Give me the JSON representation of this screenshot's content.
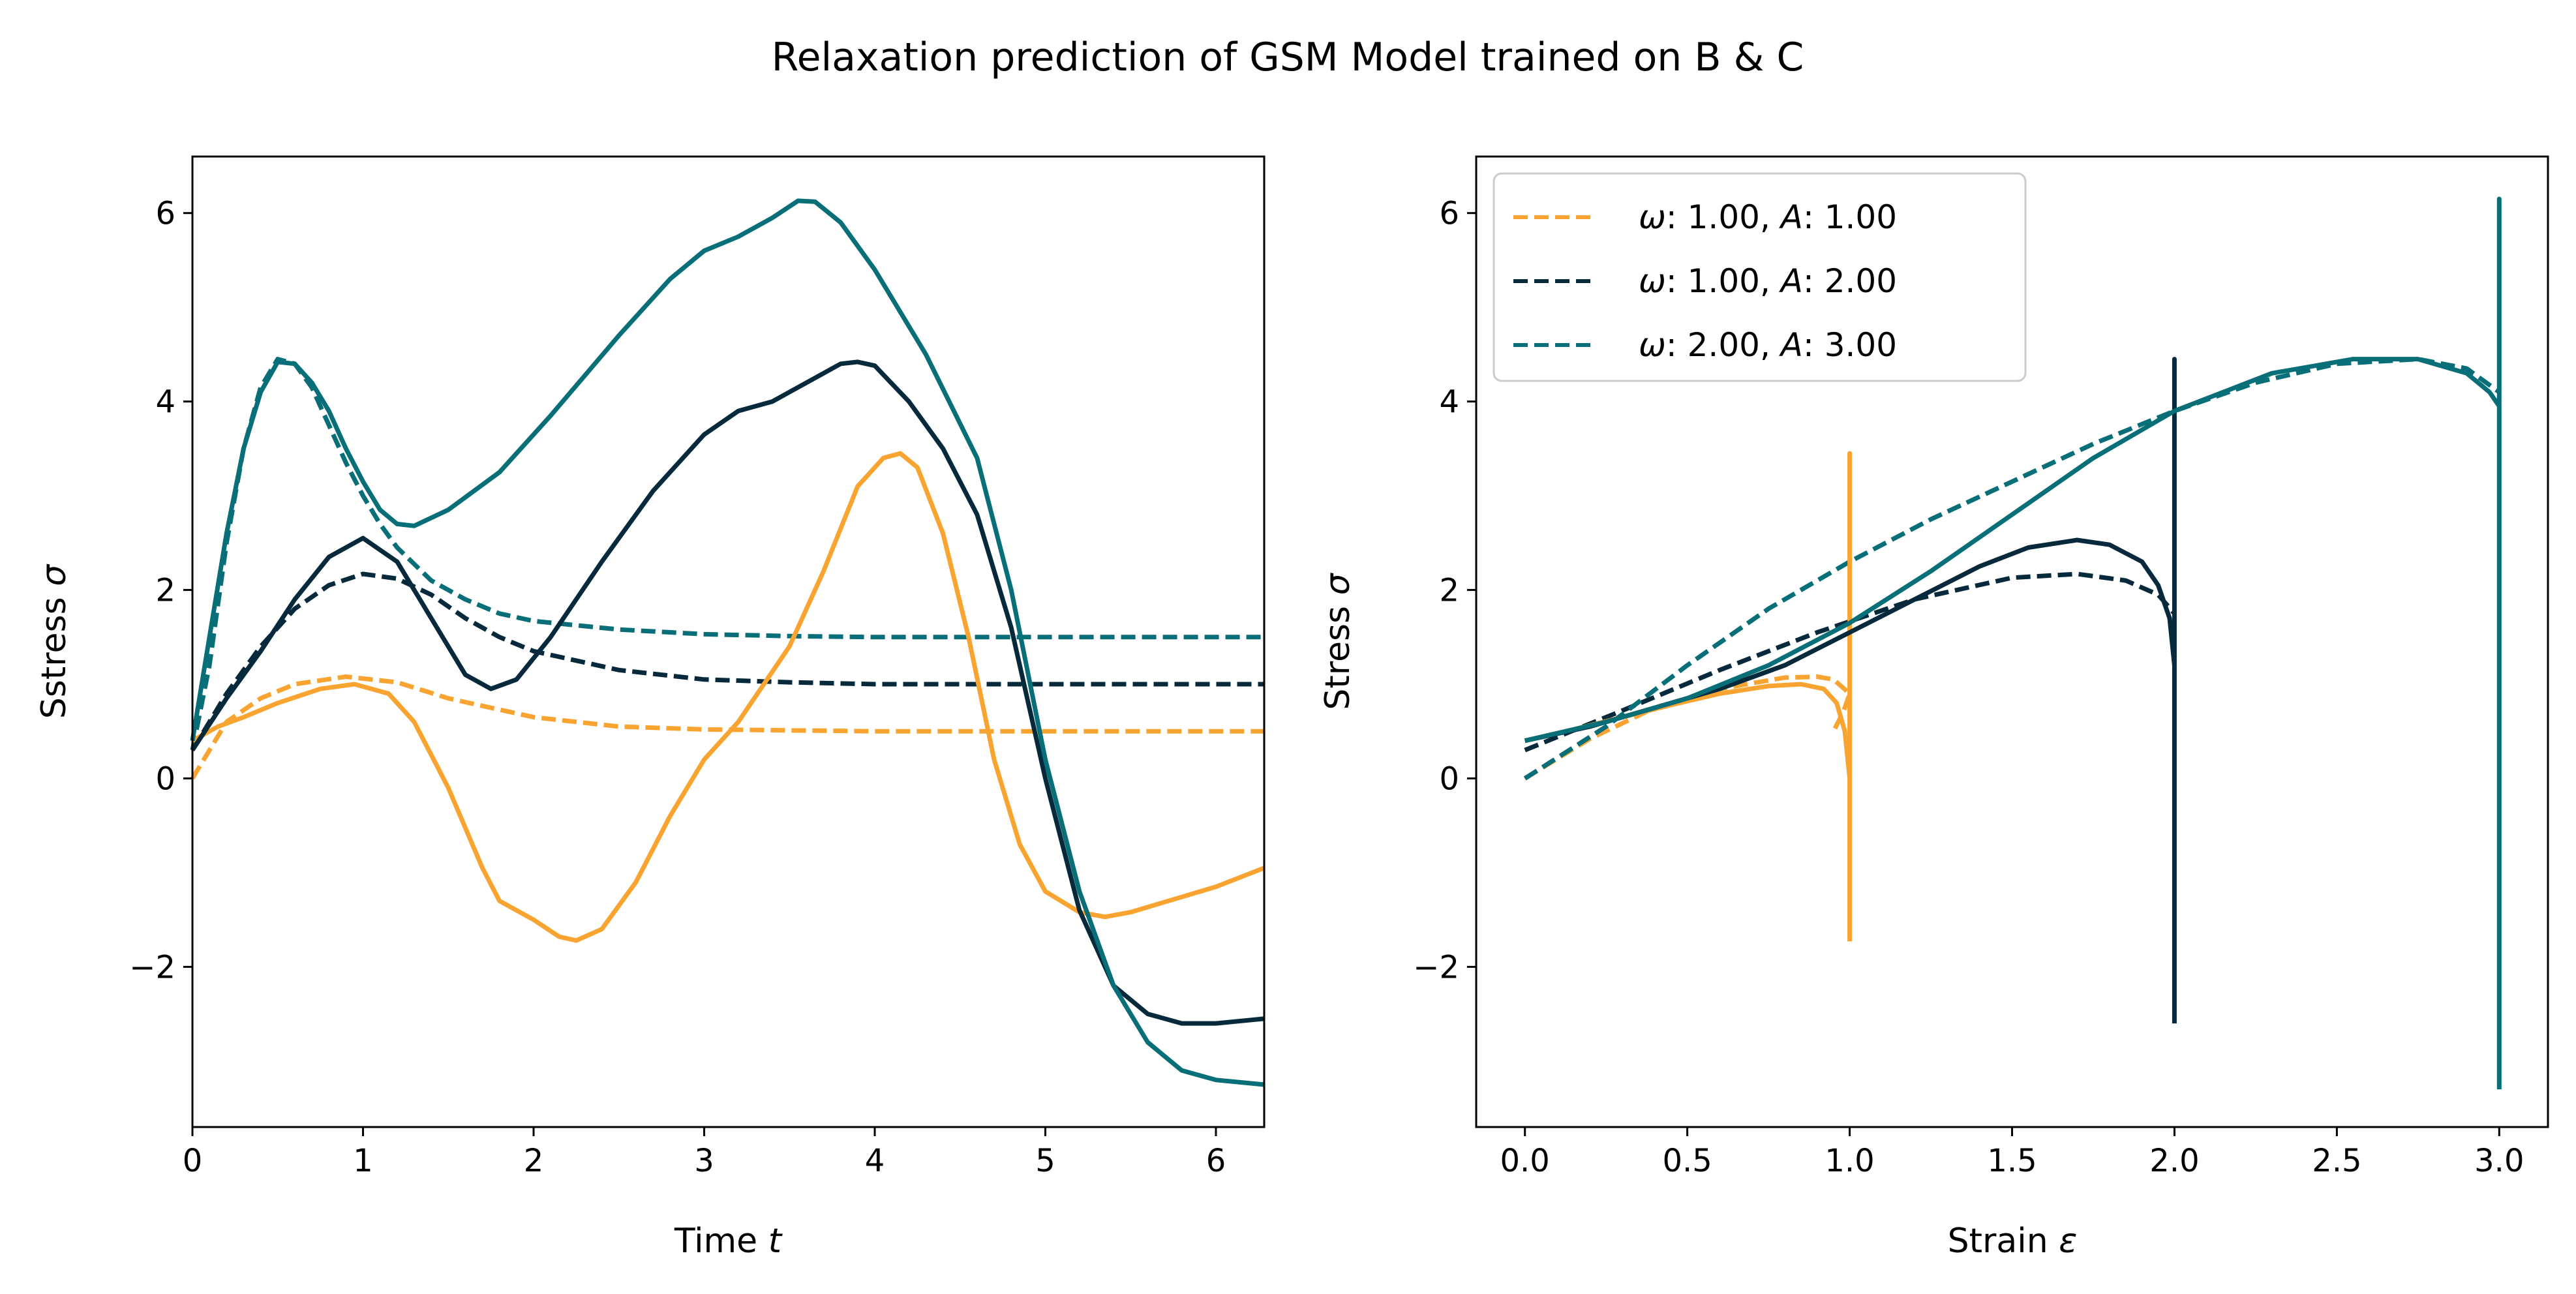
{
  "figure_title": "Relaxation prediction of GSM Model trained on B & C",
  "colors": {
    "orange": "#f9a430",
    "navy": "#062a3c",
    "teal": "#086e78"
  },
  "chart_data": [
    {
      "type": "line",
      "title": "",
      "xlabel": "Time ",
      "xlabel_symbol": "t",
      "ylabel": "Sstress ",
      "ylabel_symbol": "σ",
      "xlim": [
        0,
        6.283
      ],
      "ylim": [
        -3.7,
        6.6
      ],
      "xticks": [
        0,
        1,
        2,
        3,
        4,
        5,
        6
      ],
      "xtick_labels": [
        "0",
        "1",
        "2",
        "3",
        "4",
        "5",
        "6"
      ],
      "yticks": [
        -2,
        0,
        2,
        4,
        6
      ],
      "ytick_labels": [
        "−2",
        "0",
        "2",
        "4",
        "6"
      ],
      "grid": false,
      "series": [
        {
          "color": "orange",
          "style": "dashed",
          "x": [
            0,
            0.2,
            0.4,
            0.6,
            0.9,
            1.2,
            1.5,
            2,
            2.5,
            3,
            3.5,
            4,
            5,
            6.283
          ],
          "y": [
            0,
            0.6,
            0.85,
            1.0,
            1.08,
            1.02,
            0.85,
            0.65,
            0.55,
            0.52,
            0.51,
            0.5,
            0.5,
            0.5
          ]
        },
        {
          "color": "navy",
          "style": "dashed",
          "x": [
            0,
            0.2,
            0.4,
            0.6,
            0.8,
            1.0,
            1.2,
            1.4,
            1.6,
            1.8,
            2.0,
            2.5,
            3.0,
            3.5,
            4.0,
            5.0,
            6.283
          ],
          "y": [
            0.3,
            0.9,
            1.4,
            1.8,
            2.05,
            2.17,
            2.12,
            1.95,
            1.7,
            1.5,
            1.35,
            1.15,
            1.05,
            1.02,
            1.0,
            1.0,
            1.0
          ]
        },
        {
          "color": "teal",
          "style": "dashed",
          "x": [
            0,
            0.1,
            0.2,
            0.3,
            0.4,
            0.5,
            0.6,
            0.7,
            0.8,
            0.9,
            1.0,
            1.1,
            1.2,
            1.4,
            1.6,
            1.8,
            2.0,
            2.5,
            3.0,
            3.5,
            4.0,
            5.0,
            6.283
          ],
          "y": [
            0.3,
            1.2,
            2.5,
            3.5,
            4.15,
            4.45,
            4.4,
            4.15,
            3.75,
            3.35,
            3.0,
            2.7,
            2.45,
            2.1,
            1.9,
            1.75,
            1.67,
            1.58,
            1.53,
            1.51,
            1.5,
            1.5,
            1.5
          ]
        },
        {
          "color": "orange",
          "style": "solid",
          "x": [
            0,
            0.15,
            0.3,
            0.5,
            0.75,
            0.95,
            1.15,
            1.3,
            1.5,
            1.7,
            1.8,
            2.0,
            2.15,
            2.25,
            2.4,
            2.6,
            2.8,
            3.0,
            3.2,
            3.5,
            3.7,
            3.9,
            4.05,
            4.15,
            4.25,
            4.4,
            4.55,
            4.7,
            4.85,
            5.0,
            5.2,
            5.35,
            5.5,
            6.0,
            6.283
          ],
          "y": [
            0.4,
            0.55,
            0.65,
            0.8,
            0.95,
            1.0,
            0.9,
            0.6,
            -0.1,
            -0.95,
            -1.3,
            -1.5,
            -1.68,
            -1.72,
            -1.6,
            -1.1,
            -0.4,
            0.2,
            0.6,
            1.4,
            2.2,
            3.1,
            3.4,
            3.45,
            3.3,
            2.6,
            1.5,
            0.2,
            -0.7,
            -1.2,
            -1.42,
            -1.47,
            -1.42,
            -1.15,
            -0.95
          ]
        },
        {
          "color": "navy",
          "style": "solid",
          "x": [
            0,
            0.2,
            0.4,
            0.6,
            0.8,
            1.0,
            1.2,
            1.4,
            1.6,
            1.75,
            1.9,
            2.1,
            2.4,
            2.7,
            3.0,
            3.2,
            3.4,
            3.6,
            3.8,
            3.9,
            4.0,
            4.2,
            4.4,
            4.6,
            4.8,
            5.0,
            5.2,
            5.4,
            5.6,
            5.8,
            6.0,
            6.283
          ],
          "y": [
            0.3,
            0.85,
            1.35,
            1.9,
            2.35,
            2.55,
            2.3,
            1.7,
            1.1,
            0.95,
            1.05,
            1.5,
            2.3,
            3.05,
            3.65,
            3.9,
            4.0,
            4.2,
            4.4,
            4.42,
            4.38,
            4.0,
            3.5,
            2.8,
            1.6,
            0.0,
            -1.4,
            -2.2,
            -2.5,
            -2.6,
            -2.6,
            -2.55
          ]
        },
        {
          "color": "teal",
          "style": "solid",
          "x": [
            0,
            0.1,
            0.2,
            0.3,
            0.4,
            0.5,
            0.6,
            0.7,
            0.8,
            0.9,
            1.0,
            1.1,
            1.2,
            1.3,
            1.5,
            1.8,
            2.1,
            2.5,
            2.8,
            3.0,
            3.2,
            3.4,
            3.55,
            3.65,
            3.8,
            4.0,
            4.3,
            4.6,
            4.8,
            5.0,
            5.2,
            5.4,
            5.6,
            5.8,
            6.0,
            6.283
          ],
          "y": [
            0.4,
            1.5,
            2.6,
            3.5,
            4.1,
            4.42,
            4.4,
            4.2,
            3.9,
            3.5,
            3.15,
            2.85,
            2.7,
            2.68,
            2.85,
            3.25,
            3.85,
            4.7,
            5.3,
            5.6,
            5.75,
            5.95,
            6.13,
            6.12,
            5.9,
            5.4,
            4.5,
            3.4,
            2.0,
            0.2,
            -1.2,
            -2.2,
            -2.8,
            -3.1,
            -3.2,
            -3.25
          ]
        }
      ]
    },
    {
      "type": "line",
      "title": "",
      "xlabel": "Strain ",
      "xlabel_symbol": "ε",
      "ylabel": "Stress ",
      "ylabel_symbol": "σ",
      "xlim": [
        -0.15,
        3.15
      ],
      "ylim": [
        -3.7,
        6.6
      ],
      "xticks": [
        0,
        0.5,
        1,
        1.5,
        2,
        2.5,
        3
      ],
      "xtick_labels": [
        "0.0",
        "0.5",
        "1.0",
        "1.5",
        "2.0",
        "2.5",
        "3.0"
      ],
      "yticks": [
        -2,
        0,
        2,
        4,
        6
      ],
      "ytick_labels": [
        "−2",
        "0",
        "2",
        "4",
        "6"
      ],
      "grid": false,
      "legend": {
        "placement": "upper left",
        "entries": [
          {
            "color": "orange",
            "style": "dashed",
            "w_label": ": 1.00, ",
            "a_label": ": 1.00"
          },
          {
            "color": "navy",
            "style": "dashed",
            "w_label": ": 1.00, ",
            "a_label": ": 2.00"
          },
          {
            "color": "teal",
            "style": "dashed",
            "w_label": ": 2.00, ",
            "a_label": ": 3.00"
          }
        ],
        "omega_symbol": "ω",
        "a_symbol": "A"
      },
      "series": [
        {
          "color": "orange",
          "style": "dashed",
          "x": [
            0,
            0.2,
            0.4,
            0.6,
            0.8,
            0.9,
            0.95,
            1.0,
            0.98,
            0.95
          ],
          "y": [
            0,
            0.42,
            0.75,
            0.95,
            1.07,
            1.08,
            1.05,
            0.9,
            0.7,
            0.5
          ]
        },
        {
          "color": "navy",
          "style": "dashed",
          "x": [
            0,
            0.3,
            0.6,
            0.9,
            1.2,
            1.5,
            1.7,
            1.85,
            1.95,
            2.0
          ],
          "y": [
            0.3,
            0.72,
            1.15,
            1.55,
            1.9,
            2.13,
            2.17,
            2.1,
            1.95,
            1.75
          ]
        },
        {
          "color": "teal",
          "style": "dashed",
          "x": [
            0,
            0.25,
            0.5,
            0.75,
            1.0,
            1.25,
            1.5,
            1.75,
            2.0,
            2.25,
            2.5,
            2.75,
            2.9,
            3.0
          ],
          "y": [
            0,
            0.55,
            1.2,
            1.8,
            2.3,
            2.75,
            3.15,
            3.55,
            3.9,
            4.2,
            4.4,
            4.45,
            4.35,
            4.1
          ]
        },
        {
          "color": "orange",
          "style": "solid",
          "x": [
            0,
            0.15,
            0.3,
            0.45,
            0.6,
            0.75,
            0.85,
            0.92,
            0.96,
            0.985,
            1.0,
            1.0,
            1.0
          ],
          "y": [
            0.4,
            0.52,
            0.65,
            0.78,
            0.9,
            0.98,
            1.0,
            0.95,
            0.8,
            0.5,
            0.0,
            3.45,
            -1.73
          ]
        },
        {
          "color": "navy",
          "style": "solid",
          "x": [
            0,
            0.2,
            0.4,
            0.6,
            0.8,
            1.0,
            1.2,
            1.4,
            1.55,
            1.7,
            1.8,
            1.9,
            1.95,
            1.985,
            2.0,
            2.0,
            2.0
          ],
          "y": [
            0.4,
            0.55,
            0.75,
            0.95,
            1.2,
            1.55,
            1.9,
            2.25,
            2.45,
            2.53,
            2.48,
            2.3,
            2.05,
            1.7,
            1.2,
            4.45,
            -2.6
          ]
        },
        {
          "color": "teal",
          "style": "solid",
          "x": [
            0,
            0.25,
            0.5,
            0.75,
            1.0,
            1.25,
            1.5,
            1.75,
            2.0,
            2.3,
            2.55,
            2.75,
            2.9,
            2.97,
            3.0,
            3.0,
            3.0
          ],
          "y": [
            0.4,
            0.6,
            0.85,
            1.2,
            1.65,
            2.2,
            2.8,
            3.4,
            3.9,
            4.3,
            4.45,
            4.45,
            4.3,
            4.1,
            3.95,
            6.15,
            -3.3
          ]
        }
      ]
    }
  ]
}
